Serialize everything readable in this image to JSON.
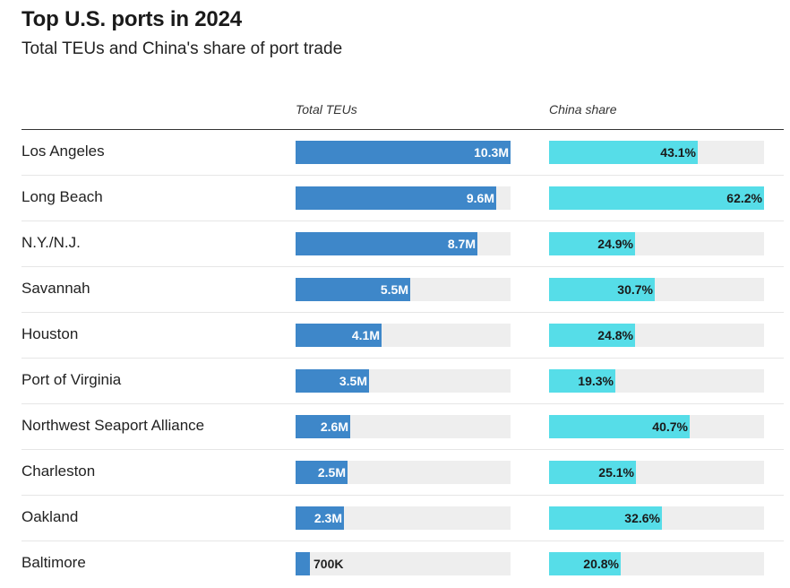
{
  "title": "Top U.S. ports in 2024",
  "subtitle": "Total TEUs and China's share of port trade",
  "columns": {
    "teu": "Total TEUs",
    "china": "China share"
  },
  "colors": {
    "teu_bar": "#3e87c9",
    "china_bar": "#56dde8",
    "track": "#eeeeee"
  },
  "chart_data": {
    "type": "bar",
    "title": "Top U.S. ports in 2024",
    "subtitle": "Total TEUs and China's share of port trade",
    "categories": [
      "Los Angeles",
      "Long Beach",
      "N.Y./N.J.",
      "Savannah",
      "Houston",
      "Port of Virginia",
      "Northwest Seaport Alliance",
      "Charleston",
      "Oakland",
      "Baltimore"
    ],
    "series": [
      {
        "name": "Total TEUs",
        "values": [
          10300000,
          9600000,
          8700000,
          5500000,
          4100000,
          3500000,
          2600000,
          2500000,
          2300000,
          700000
        ],
        "labels": [
          "10.3M",
          "9.6M",
          "8.7M",
          "5.5M",
          "4.1M",
          "3.5M",
          "2.6M",
          "2.5M",
          "2.3M",
          "700K"
        ],
        "max": 10300000
      },
      {
        "name": "China share",
        "values": [
          43.1,
          62.2,
          24.9,
          30.7,
          24.8,
          19.3,
          40.7,
          25.1,
          32.6,
          20.8
        ],
        "labels": [
          "43.1%",
          "62.2%",
          "24.9%",
          "30.7%",
          "24.8%",
          "19.3%",
          "40.7%",
          "25.1%",
          "32.6%",
          "20.8%"
        ],
        "max": 62.2
      }
    ]
  }
}
